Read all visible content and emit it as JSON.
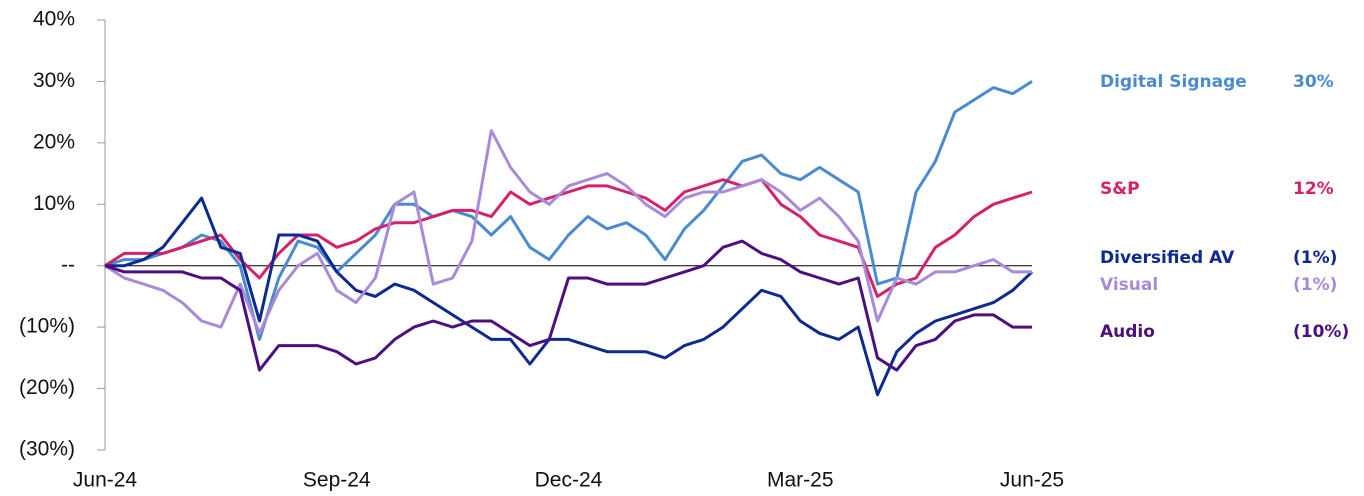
{
  "chart_data": {
    "type": "line",
    "categories": [
      "Jun-24",
      null,
      null,
      null,
      null,
      null,
      null,
      null,
      null,
      null,
      null,
      null,
      "Sep-24",
      null,
      null,
      null,
      null,
      null,
      null,
      null,
      null,
      null,
      null,
      null,
      "Dec-24",
      null,
      null,
      null,
      null,
      null,
      null,
      null,
      null,
      null,
      null,
      null,
      "Mar-25",
      null,
      null,
      null,
      null,
      null,
      null,
      null,
      null,
      null,
      null,
      null,
      "Jun-25"
    ],
    "ylim": [
      -30,
      40
    ],
    "yticks": [
      {
        "value": -30,
        "label": "(30%)"
      },
      {
        "value": -20,
        "label": "(20%)"
      },
      {
        "value": -10,
        "label": "(10%)"
      },
      {
        "value": 0,
        "label": "--"
      },
      {
        "value": 10,
        "label": "10%"
      },
      {
        "value": 20,
        "label": "20%"
      },
      {
        "value": 30,
        "label": "30%"
      },
      {
        "value": 40,
        "label": "40%"
      }
    ],
    "series": [
      {
        "name": "Digital Signage",
        "color": "#4a8bcf",
        "value_label": "30%",
        "values": [
          0,
          1,
          1,
          2,
          3,
          5,
          4,
          0,
          -12,
          -2,
          4,
          3,
          -1,
          2,
          5,
          10,
          10,
          8,
          9,
          8,
          5,
          8,
          3,
          1,
          5,
          8,
          6,
          7,
          5,
          1,
          6,
          9,
          13,
          17,
          18,
          15,
          14,
          16,
          14,
          12,
          -3,
          -2,
          12,
          17,
          25,
          27,
          29,
          28,
          30
        ]
      },
      {
        "name": "S&P",
        "color": "#d2226c",
        "value_label": "12%",
        "values": [
          0,
          2,
          2,
          2,
          3,
          4,
          5,
          1,
          -2,
          2,
          5,
          5,
          3,
          4,
          6,
          7,
          7,
          8,
          9,
          9,
          8,
          12,
          10,
          11,
          12,
          13,
          13,
          12,
          11,
          9,
          12,
          13,
          14,
          13,
          14,
          10,
          8,
          5,
          4,
          3,
          -5,
          -3,
          -2,
          3,
          5,
          8,
          10,
          11,
          12
        ]
      },
      {
        "name": "Diversified AV",
        "color": "#0f2a8e",
        "value_label": "(1%)",
        "values": [
          0,
          0,
          1,
          3,
          7,
          11,
          3,
          2,
          -9,
          5,
          5,
          4,
          -1,
          -4,
          -5,
          -3,
          -4,
          -6,
          -8,
          -10,
          -12,
          -12,
          -16,
          -12,
          -12,
          -13,
          -14,
          -14,
          -14,
          -15,
          -13,
          -12,
          -10,
          -7,
          -4,
          -5,
          -9,
          -11,
          -12,
          -10,
          -21,
          -14,
          -11,
          -9,
          -8,
          -7,
          -6,
          -4,
          -1
        ]
      },
      {
        "name": "Visual",
        "color": "#a88ad9",
        "value_label": "(1%)",
        "values": [
          0,
          -2,
          -3,
          -4,
          -6,
          -9,
          -10,
          -3,
          -11,
          -4,
          0,
          2,
          -4,
          -6,
          -2,
          10,
          12,
          -3,
          -2,
          4,
          22,
          16,
          12,
          10,
          13,
          14,
          15,
          13,
          10,
          8,
          11,
          12,
          12,
          13,
          14,
          12,
          9,
          11,
          8,
          4,
          -9,
          -2,
          -3,
          -1,
          -1,
          0,
          1,
          -1,
          -1
        ]
      },
      {
        "name": "Audio",
        "color": "#4c107e",
        "value_label": "(10%)",
        "values": [
          0,
          -1,
          -1,
          -1,
          -1,
          -2,
          -2,
          -4,
          -17,
          -13,
          -13,
          -13,
          -14,
          -16,
          -15,
          -12,
          -10,
          -9,
          -10,
          -9,
          -9,
          -11,
          -13,
          -12,
          -2,
          -2,
          -3,
          -3,
          -3,
          -2,
          -1,
          0,
          3,
          4,
          2,
          1,
          -1,
          -2,
          -3,
          -2,
          -15,
          -17,
          -13,
          -12,
          -9,
          -8,
          -8,
          -10,
          -10
        ]
      }
    ]
  }
}
